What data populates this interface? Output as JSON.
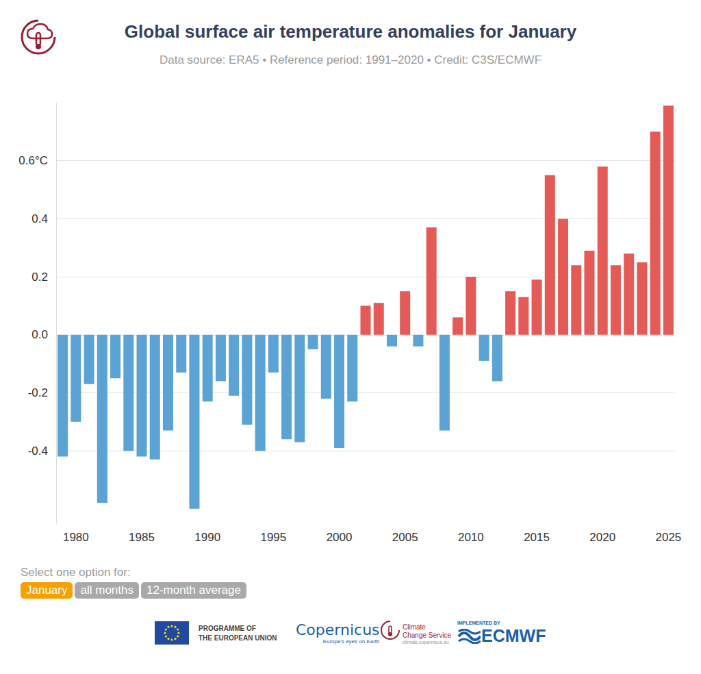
{
  "chart_data": {
    "type": "bar",
    "title": "Global surface air temperature anomalies for January",
    "subtitle": "Data source: ERA5 • Reference period: 1991–2020 • Credit: C3S/ECMWF",
    "categories": [
      null,
      "1980",
      null,
      null,
      null,
      null,
      "1985",
      null,
      null,
      null,
      null,
      "1990",
      null,
      null,
      null,
      null,
      "1995",
      null,
      null,
      null,
      null,
      "2000",
      null,
      null,
      null,
      null,
      "2005",
      null,
      null,
      null,
      null,
      "2010",
      null,
      null,
      null,
      null,
      "2015",
      null,
      null,
      null,
      null,
      "2020",
      null,
      null,
      null,
      null,
      "2025"
    ],
    "values": [
      -0.42,
      -0.3,
      -0.17,
      -0.58,
      -0.15,
      -0.4,
      -0.42,
      -0.43,
      -0.33,
      -0.13,
      -0.6,
      -0.23,
      -0.16,
      -0.21,
      -0.31,
      -0.4,
      -0.13,
      -0.36,
      -0.37,
      -0.05,
      -0.22,
      -0.39,
      -0.23,
      0.1,
      0.11,
      -0.04,
      0.15,
      -0.04,
      0.37,
      -0.33,
      0.06,
      0.2,
      -0.09,
      -0.16,
      0.15,
      0.13,
      0.19,
      0.55,
      0.4,
      0.24,
      0.29,
      0.58,
      0.24,
      0.28,
      0.25,
      0.7,
      0.79
    ],
    "colors": [
      "#5ba3d5",
      "#5ba3d5",
      "#5ba3d5",
      "#5ba3d5",
      "#5ba3d5",
      "#5ba3d5",
      "#5ba3d5",
      "#5ba3d5",
      "#5ba3d5",
      "#5ba3d5",
      "#5ba3d5",
      "#5ba3d5",
      "#5ba3d5",
      "#5ba3d5",
      "#5ba3d5",
      "#5ba3d5",
      "#5ba3d5",
      "#5ba3d5",
      "#5ba3d5",
      "#5ba3d5",
      "#5ba3d5",
      "#5ba3d5",
      "#5ba3d5",
      "#e35a57",
      "#e35a57",
      "#5ba3d5",
      "#e35a57",
      "#5ba3d5",
      "#e35a57",
      "#5ba3d5",
      "#e35a57",
      "#e35a57",
      "#5ba3d5",
      "#5ba3d5",
      "#e35a57",
      "#e35a57",
      "#e35a57",
      "#e35a57",
      "#e35a57",
      "#e35a57",
      "#e35a57",
      "#e35a57",
      "#e35a57",
      "#e35a57",
      "#e35a57",
      "#e35a57",
      "#e35a57"
    ],
    "ylim": [
      -0.65,
      0.8
    ],
    "yticks": [
      -0.4,
      -0.2,
      {
        "value": 0,
        "label": "0.0"
      },
      0.2,
      0.4,
      {
        "value": 0.6,
        "label": "0.6°C"
      }
    ],
    "grid": true,
    "data_labels": false
  },
  "controls": {
    "prompt": "Select one option for:",
    "options": [
      "January",
      "all months",
      "12-month average"
    ],
    "selected": "January"
  },
  "footer": {
    "eu": [
      "PROGRAMME OF",
      "THE EUROPEAN UNION"
    ],
    "copernicus": "Copernicus",
    "copernicus_tagline": "Europe's eyes on Earth",
    "c3s": [
      "Climate",
      "Change Service"
    ],
    "c3s_url": "climate.copernicus.eu",
    "ecmwf_note": "IMPLEMENTED BY",
    "ecmwf": "ECMWF"
  }
}
